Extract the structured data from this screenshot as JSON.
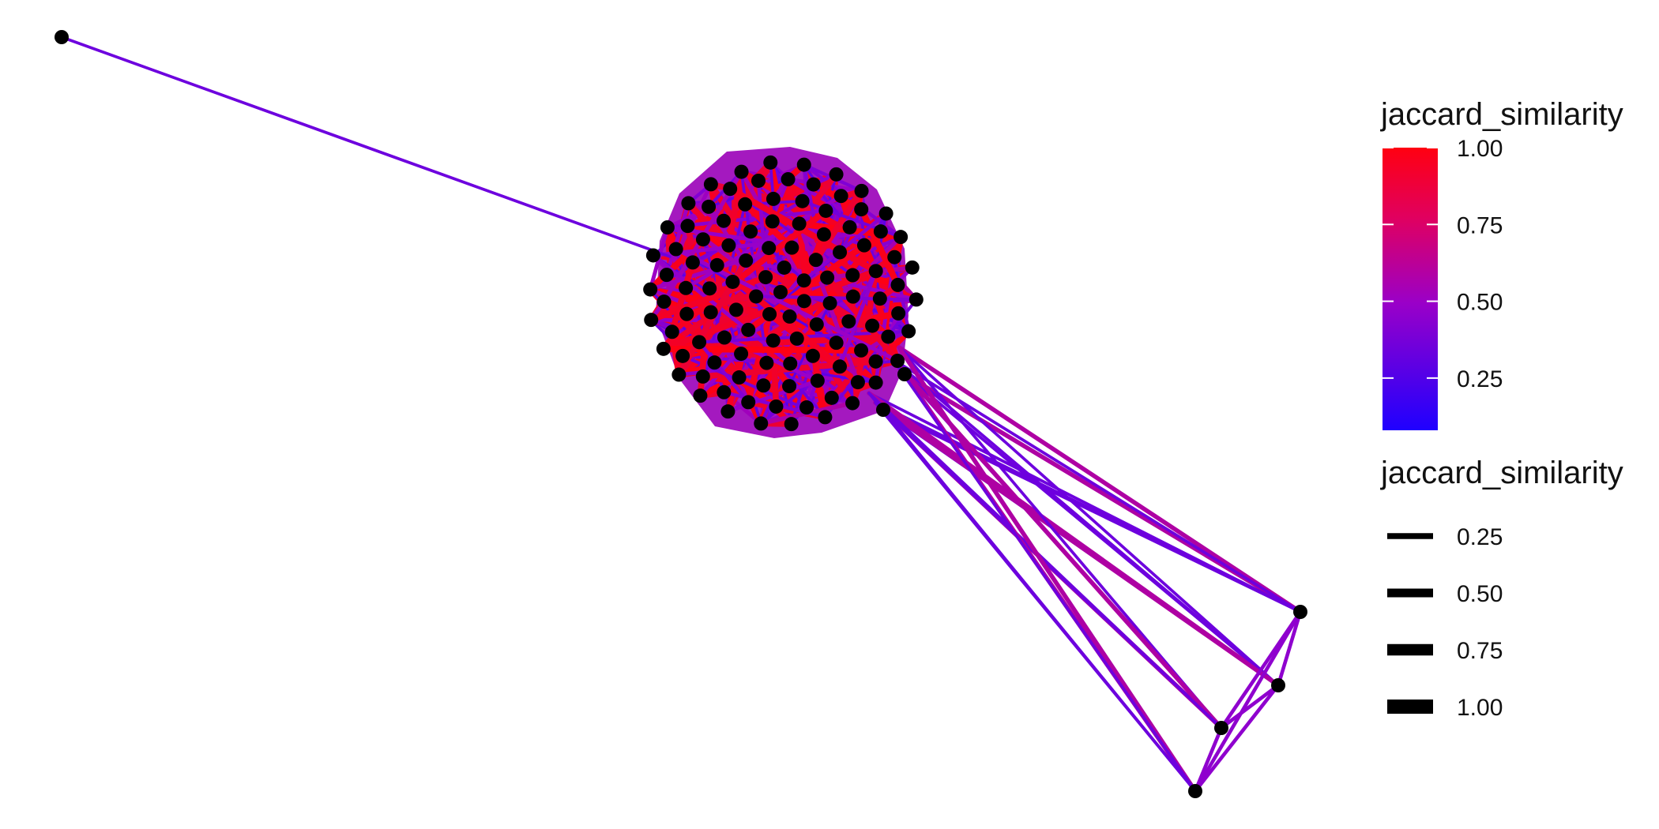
{
  "graph": {
    "type": "network",
    "edge_color_scale": {
      "low": "#2a00ff",
      "high": "#ff0011"
    }
  },
  "legend": {
    "color": {
      "title": "jaccard_similarity",
      "ticks": [
        "1.00",
        "0.75",
        "0.50",
        "0.25"
      ],
      "tick_values": [
        1.0,
        0.75,
        0.5,
        0.25
      ],
      "range": [
        0.08,
        1.0
      ]
    },
    "width": {
      "title": "jaccard_similarity",
      "items": [
        {
          "label": "0.25",
          "value": 0.25
        },
        {
          "label": "0.50",
          "value": 0.5
        },
        {
          "label": "0.75",
          "value": 0.75
        },
        {
          "label": "1.00",
          "value": 1.0
        }
      ]
    }
  }
}
